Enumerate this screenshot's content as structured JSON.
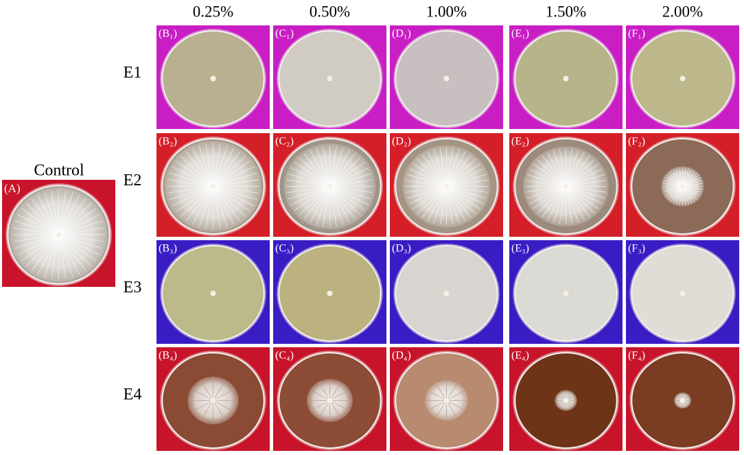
{
  "control": {
    "title": "Control",
    "label": "(A)"
  },
  "columns": [
    "0.25%",
    "0.50%",
    "1.00%",
    "1.50%",
    "2.00%"
  ],
  "rows": [
    {
      "label": "E1",
      "panels": [
        "(B₁)",
        "(C₁)",
        "(D₁)",
        "(E₁)",
        "(F₁)"
      ]
    },
    {
      "label": "E2",
      "panels": [
        "(B₂)",
        "(C₂)",
        "(D₂)",
        "(E₂)",
        "(F₂)"
      ]
    },
    {
      "label": "E3",
      "panels": [
        "(B₃)",
        "(C₃)",
        "(D₃)",
        "(E₃)",
        "(F₃)"
      ]
    },
    {
      "label": "E4",
      "panels": [
        "(B₄)",
        "(C₄)",
        "(D₄)",
        "(E₄)",
        "(F₄)"
      ]
    }
  ]
}
